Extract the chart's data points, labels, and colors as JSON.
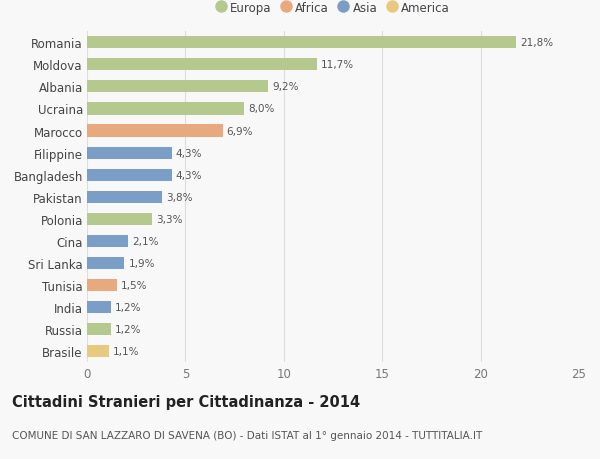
{
  "countries": [
    "Romania",
    "Moldova",
    "Albania",
    "Ucraina",
    "Marocco",
    "Filippine",
    "Bangladesh",
    "Pakistan",
    "Polonia",
    "Cina",
    "Sri Lanka",
    "Tunisia",
    "India",
    "Russia",
    "Brasile"
  ],
  "values": [
    21.8,
    11.7,
    9.2,
    8.0,
    6.9,
    4.3,
    4.3,
    3.8,
    3.3,
    2.1,
    1.9,
    1.5,
    1.2,
    1.2,
    1.1
  ],
  "labels": [
    "21,8%",
    "11,7%",
    "9,2%",
    "8,0%",
    "6,9%",
    "4,3%",
    "4,3%",
    "3,8%",
    "3,3%",
    "2,1%",
    "1,9%",
    "1,5%",
    "1,2%",
    "1,2%",
    "1,1%"
  ],
  "colors": [
    "#b5c98e",
    "#b5c98e",
    "#b5c98e",
    "#b5c98e",
    "#e8a97e",
    "#7b9ec7",
    "#7b9ec7",
    "#7b9ec7",
    "#b5c98e",
    "#7b9ec7",
    "#7b9ec7",
    "#e8a97e",
    "#7b9ec7",
    "#b5c98e",
    "#e8c97e"
  ],
  "legend_labels": [
    "Europa",
    "Africa",
    "Asia",
    "America"
  ],
  "legend_colors": [
    "#b5c98e",
    "#e8a97e",
    "#7b9ec7",
    "#e8c97e"
  ],
  "title": "Cittadini Stranieri per Cittadinanza - 2014",
  "subtitle": "COMUNE DI SAN LAZZARO DI SAVENA (BO) - Dati ISTAT al 1° gennaio 2014 - TUTTITALIA.IT",
  "xlim": [
    0,
    25
  ],
  "xticks": [
    0,
    5,
    10,
    15,
    20,
    25
  ],
  "background_color": "#f8f8f8",
  "grid_color": "#dddddd",
  "title_fontsize": 10.5,
  "subtitle_fontsize": 7.5,
  "bar_height": 0.55
}
